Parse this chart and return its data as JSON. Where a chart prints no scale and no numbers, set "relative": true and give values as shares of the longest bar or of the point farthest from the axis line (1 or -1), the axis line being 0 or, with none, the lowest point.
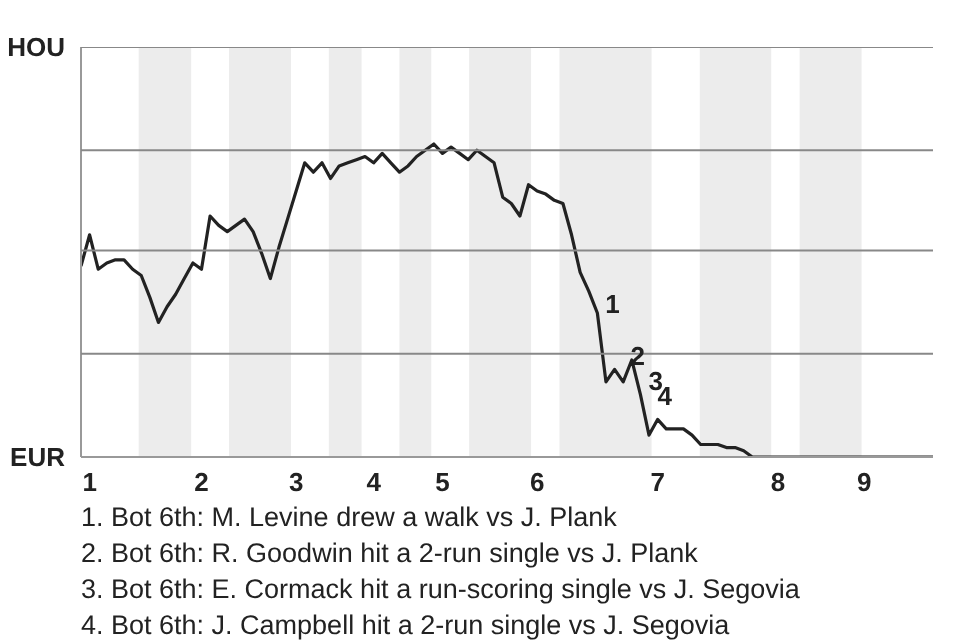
{
  "chart_data": {
    "type": "line",
    "relative": true,
    "categories": [
      null,
      "1",
      null,
      null,
      null,
      null,
      null,
      null,
      null,
      null,
      null,
      null,
      null,
      null,
      "2",
      null,
      null,
      null,
      null,
      null,
      null,
      null,
      null,
      null,
      null,
      "3",
      null,
      null,
      null,
      null,
      null,
      null,
      null,
      null,
      "4",
      null,
      null,
      null,
      null,
      null,
      null,
      null,
      "5",
      null,
      null,
      null,
      null,
      null,
      null,
      null,
      null,
      null,
      null,
      "6",
      null,
      null,
      null,
      null,
      null,
      null,
      null,
      null,
      null,
      null,
      null,
      null,
      null,
      "7",
      null,
      null,
      null,
      null,
      null,
      null,
      null,
      null,
      null,
      null,
      null,
      null,
      null,
      "8",
      null,
      null,
      null,
      null,
      null,
      null,
      null,
      null,
      null,
      "9",
      null,
      null,
      null,
      null,
      null,
      null,
      null,
      null
    ],
    "series": [
      {
        "color": "#222222",
        "values": [
          0.61,
          0.71,
          0.6,
          0.62,
          0.63,
          0.63,
          0.6,
          0.58,
          0.51,
          0.43,
          0.48,
          0.52,
          0.57,
          0.62,
          0.6,
          0.77,
          0.74,
          0.72,
          0.74,
          0.76,
          0.72,
          0.65,
          0.57,
          0.67,
          0.76,
          0.85,
          0.94,
          0.91,
          0.94,
          0.89,
          0.93,
          0.94,
          0.95,
          0.96,
          0.94,
          0.97,
          0.94,
          0.91,
          0.93,
          0.96,
          0.98,
          1,
          0.97,
          0.99,
          0.97,
          0.95,
          0.98,
          0.96,
          0.94,
          0.83,
          0.81,
          0.77,
          0.87,
          0.85,
          0.84,
          0.82,
          0.81,
          0.71,
          0.59,
          0.53,
          0.46,
          0.24,
          0.28,
          0.24,
          0.31,
          0.2,
          0.07,
          0.12,
          0.09,
          0.09,
          0.09,
          0.07,
          0.04,
          0.04,
          0.04,
          0.03,
          0.03,
          0.02,
          0,
          0,
          0,
          0,
          0,
          0,
          0,
          0,
          0,
          0,
          0,
          0,
          0,
          0,
          0,
          0,
          0,
          0,
          0,
          0,
          0,
          0
        ]
      }
    ],
    "marker": "none",
    "line_style": "solid",
    "ref_lines": [
      {
        "axis": "y",
        "value": 0.33,
        "color": "#888888"
      },
      {
        "axis": "y",
        "value": 0.66,
        "color": "#888888"
      },
      {
        "axis": "y",
        "value": 0.98,
        "color": "#888888"
      },
      {
        "axis": "y",
        "value": 1.31,
        "color": "#888888"
      }
    ],
    "annotations": [
      "HOU",
      "EUR",
      "1",
      "2",
      "3",
      "4",
      "1. Bot 6th: M. Levine drew a walk vs J. Plank",
      "2. Bot 6th: R. Goodwin hit a 2-run single vs J. Plank",
      "3. Bot 6th: E. Cormack hit a run-scoring single vs J. Segovia",
      "4. Bot 6th: J. Campbell hit a 2-run single vs J. Segovia"
    ]
  }
}
